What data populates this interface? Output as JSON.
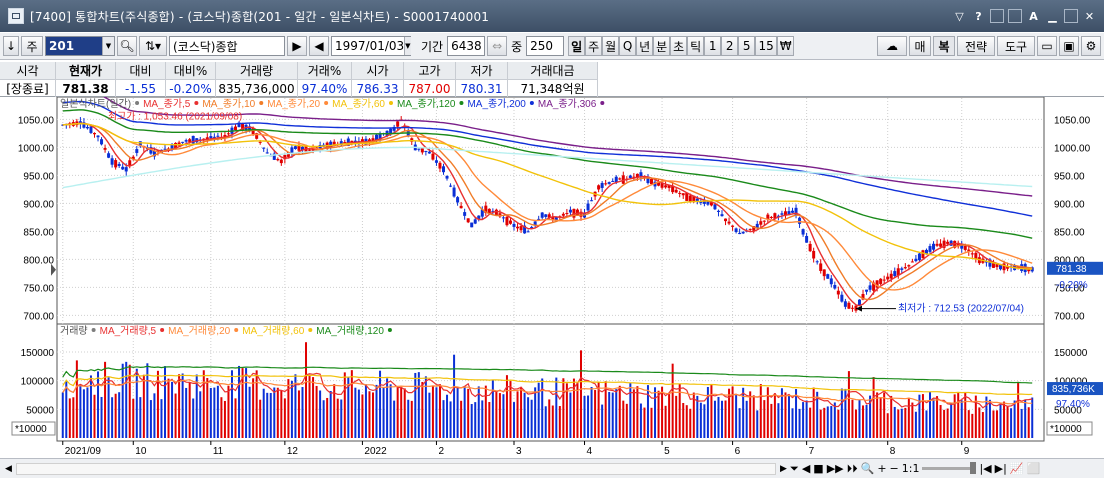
{
  "window": {
    "title": "[7400] 통합차트(주식종합) - (코스닥)종합(201 - 일간 - 일본식차트) - S0001740001",
    "tools": [
      "▽",
      "?",
      "⊡",
      "⊟",
      "A",
      "▾"
    ]
  },
  "toolbar": {
    "code_label": "주",
    "code": "201",
    "name": "(코스닥)종합",
    "date": "1997/01/03",
    "period_label": "기간",
    "period": "6438",
    "count_label": "중",
    "count": "250",
    "intervals": [
      "일",
      "주",
      "월",
      "Q",
      "년",
      "분",
      "초",
      "틱",
      "1",
      "2",
      "5",
      "15",
      "₩"
    ],
    "selected_interval": "일",
    "right_buttons": [
      "매",
      "복",
      "전략",
      "도구"
    ]
  },
  "info": {
    "headers": [
      "시각",
      "현재가",
      "대비",
      "대비%",
      "거래량",
      "거래%",
      "시가",
      "고가",
      "저가",
      "거래대금"
    ],
    "values": [
      "[장종료]",
      "781.38",
      "-1.55",
      "-0.20%",
      "835,736,000",
      "97.40%",
      "786.33",
      "787.00",
      "780.31",
      "71,348억원"
    ]
  },
  "chart_data": [
    {
      "type": "candlestick",
      "title": "일본식차트(일간)",
      "legend": [
        {
          "name": "일본식차트(일간)",
          "color": "#7d7d7d"
        },
        {
          "name": "MA_종가,5",
          "color": "#e83030"
        },
        {
          "name": "MA_종가,10",
          "color": "#f07c28"
        },
        {
          "name": "MA_종가,20",
          "color": "#ff8a3a"
        },
        {
          "name": "MA_종가,60",
          "color": "#f2c20a"
        },
        {
          "name": "MA_종가,120",
          "color": "#1a8a1a"
        },
        {
          "name": "MA_종가,200",
          "color": "#1030d8"
        },
        {
          "name": "MA_종가,306",
          "color": "#7a1f8a"
        },
        {
          "name": "",
          "color": "#b8f0f0"
        }
      ],
      "ylim": [
        690,
        1072
      ],
      "yticks": [
        1050,
        1000,
        950,
        900,
        850,
        800,
        750,
        700
      ],
      "ytick_labels": [
        "1050.00",
        "1000.00",
        "950.00",
        "900.00",
        "850.00",
        "800.00",
        "750.00",
        "700.00"
      ],
      "xticks": [
        "2021/09",
        "10",
        "11",
        "12",
        "2022",
        "2",
        "3",
        "4",
        "5",
        "6",
        "7",
        "8",
        "9"
      ],
      "annotations": {
        "high": "최고가 : 1,053.46 (2021/09/08)",
        "low": "최저가 : 712.53 (2022/07/04)"
      },
      "current": {
        "price": "781.38",
        "change_pct": "-0.20%"
      },
      "anchors": [
        [
          0,
          1040
        ],
        [
          5,
          1045
        ],
        [
          10,
          1020
        ],
        [
          14,
          975
        ],
        [
          18,
          960
        ],
        [
          22,
          1005
        ],
        [
          26,
          990
        ],
        [
          30,
          998
        ],
        [
          34,
          1010
        ],
        [
          40,
          1015
        ],
        [
          46,
          1020
        ],
        [
          50,
          1040
        ],
        [
          54,
          1030
        ],
        [
          58,
          990
        ],
        [
          62,
          975
        ],
        [
          66,
          1000
        ],
        [
          70,
          995
        ],
        [
          76,
          1005
        ],
        [
          82,
          1010
        ],
        [
          86,
          1010
        ],
        [
          90,
          1020
        ],
        [
          94,
          1032
        ],
        [
          96,
          1050
        ],
        [
          100,
          1000
        ],
        [
          104,
          990
        ],
        [
          108,
          960
        ],
        [
          112,
          905
        ],
        [
          116,
          860
        ],
        [
          120,
          890
        ],
        [
          124,
          880
        ],
        [
          128,
          860
        ],
        [
          132,
          850
        ],
        [
          136,
          880
        ],
        [
          140,
          872
        ],
        [
          144,
          885
        ],
        [
          148,
          880
        ],
        [
          152,
          930
        ],
        [
          156,
          940
        ],
        [
          160,
          945
        ],
        [
          164,
          950
        ],
        [
          168,
          935
        ],
        [
          172,
          930
        ],
        [
          176,
          915
        ],
        [
          180,
          905
        ],
        [
          184,
          900
        ],
        [
          188,
          870
        ],
        [
          190,
          860
        ],
        [
          192,
          845
        ],
        [
          196,
          855
        ],
        [
          200,
          875
        ],
        [
          204,
          880
        ],
        [
          208,
          885
        ],
        [
          210,
          850
        ],
        [
          214,
          795
        ],
        [
          218,
          760
        ],
        [
          222,
          720
        ],
        [
          225,
          712
        ],
        [
          228,
          745
        ],
        [
          232,
          760
        ],
        [
          236,
          775
        ],
        [
          240,
          790
        ],
        [
          244,
          810
        ],
        [
          248,
          825
        ],
        [
          252,
          830
        ],
        [
          256,
          822
        ],
        [
          260,
          800
        ],
        [
          264,
          790
        ],
        [
          268,
          785
        ],
        [
          272,
          785
        ],
        [
          275,
          781
        ]
      ],
      "volume": {
        "title": "거래량",
        "ylim": [
          0,
          190000
        ],
        "yticks": [
          150000,
          100000,
          50000
        ],
        "ytick_labels": [
          "150000",
          "100000",
          "50000"
        ],
        "unit": "*10000",
        "current": {
          "volume": "835,736K",
          "pct": "97.40%"
        },
        "legend": [
          {
            "name": "거래량",
            "color": "#7d7d7d"
          },
          {
            "name": "MA_거래량,5",
            "color": "#e83030"
          },
          {
            "name": "MA_거래량,20",
            "color": "#ff8a3a"
          },
          {
            "name": "MA_거래량,60",
            "color": "#f2c20a"
          },
          {
            "name": "MA_거래량,120",
            "color": "#1a8a1a"
          }
        ]
      }
    }
  ],
  "colors": {
    "up": "#e00000",
    "down": "#0a2fd6",
    "axis": "#000000",
    "grid": "#dddddd"
  },
  "statusbar": {
    "controls": [
      "⏷",
      "◀",
      "■",
      "▶▶",
      "⏵⏵",
      "🔍",
      "+",
      "−",
      "1:1",
      "|◀",
      "▶|",
      "📈",
      "⬜"
    ]
  }
}
